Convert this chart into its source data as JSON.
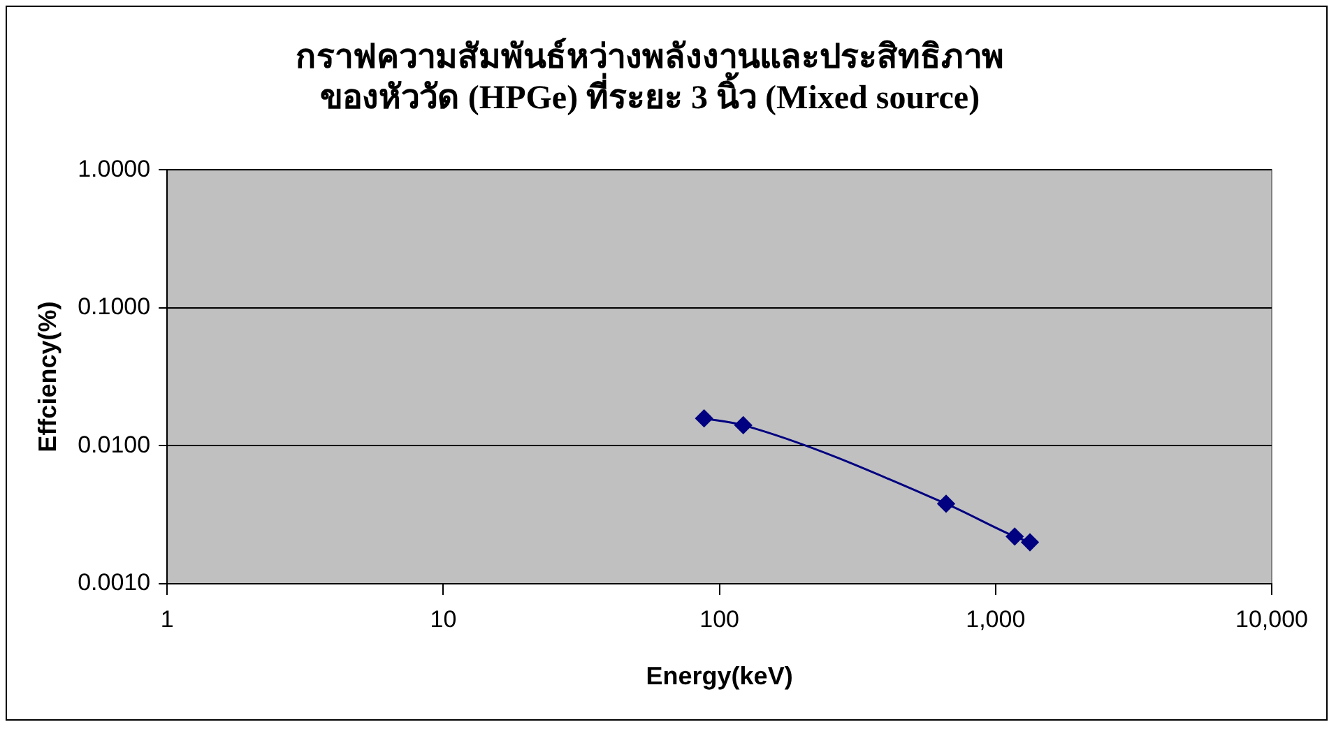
{
  "chart_data": {
    "type": "line",
    "title": "กราฟความสัมพันธ์หว่างพลังงานและประสิทธิภาพ\nของหัววัด (HPGe) ที่ระยะ 3 นิ้ว (Mixed source)",
    "xlabel": "Energy(keV)",
    "ylabel": "Effciency(%)",
    "log": "xy",
    "xlim": [
      1,
      10000
    ],
    "ylim": [
      0.001,
      1
    ],
    "xticks": [
      1,
      10,
      100,
      {
        "value": 1000,
        "label": "1,000"
      },
      {
        "value": 10000,
        "label": "10,000"
      }
    ],
    "yticks": [
      {
        "value": 0.001,
        "label": "0.0010"
      },
      {
        "value": 0.01,
        "label": "0.0100"
      },
      {
        "value": 0.1,
        "label": "0.1000"
      },
      {
        "value": 1,
        "label": "1.0000"
      }
    ],
    "grid": "y",
    "legend": false,
    "marker": "diamond",
    "line_style": "solid",
    "series": [
      {
        "color": "#000080",
        "x": [
          88,
          122,
          662,
          1173,
          1332
        ],
        "values": [
          0.0158,
          0.0141,
          0.0038,
          0.0022,
          0.002
        ]
      }
    ]
  }
}
